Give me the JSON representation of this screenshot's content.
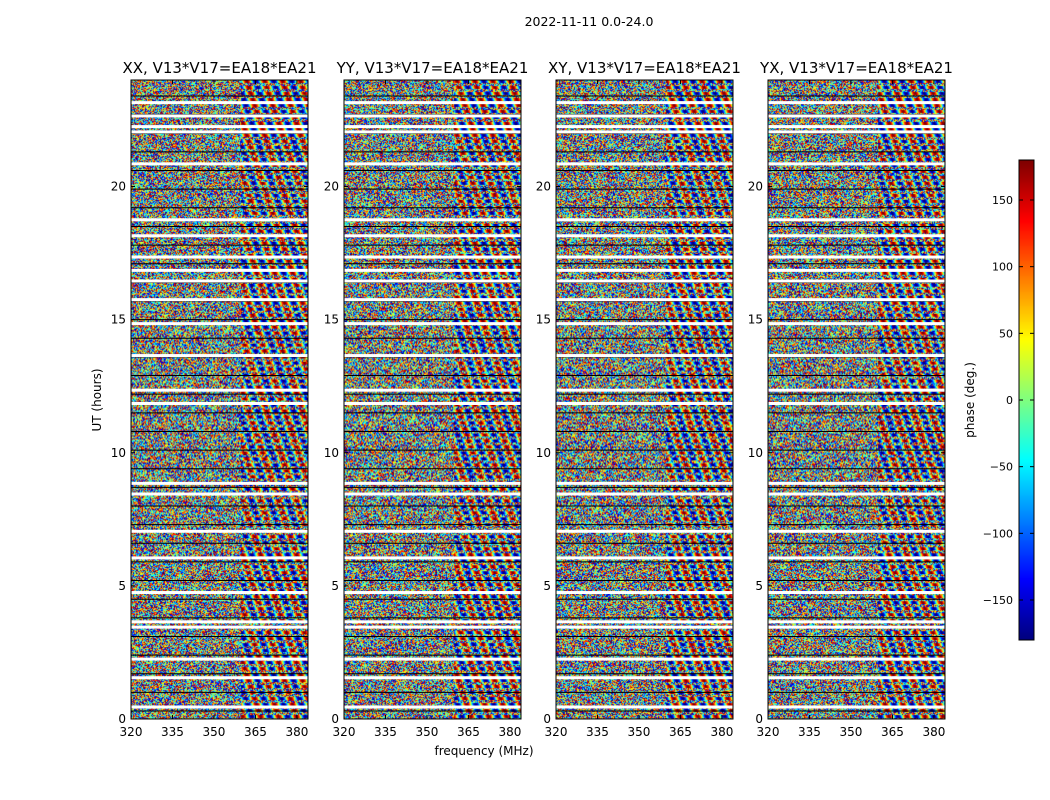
{
  "figure_title": "2022-11-11 0.0-24.0",
  "colors": {
    "background": "#ffffff",
    "axis": "#000000",
    "flagged_gap": "#ffffff",
    "integration_boundary": "#000000"
  },
  "chart_data": [
    {
      "type": "heatmap",
      "title": "XX, V13*V17=EA18*EA21",
      "ylabel": "UT (hours)",
      "xlabel": "",
      "x_ticks": [
        "320",
        "335",
        "350",
        "365",
        "380"
      ],
      "y_ticks": [
        "0",
        "5",
        "10",
        "15",
        "20"
      ],
      "xlim": [
        320,
        384
      ],
      "ylim": [
        0,
        24
      ],
      "colormap": "jet",
      "value": "phase (deg.)"
    },
    {
      "type": "heatmap",
      "title": "YY, V13*V17=EA18*EA21",
      "ylabel": "",
      "xlabel": "frequency (MHz)",
      "x_ticks": [
        "320",
        "335",
        "350",
        "365",
        "380"
      ],
      "y_ticks": [
        "0",
        "5",
        "10",
        "15",
        "20"
      ],
      "xlim": [
        320,
        384
      ],
      "ylim": [
        0,
        24
      ],
      "colormap": "jet",
      "value": "phase (deg.)"
    },
    {
      "type": "heatmap",
      "title": "XY, V13*V17=EA18*EA21",
      "ylabel": "",
      "xlabel": "",
      "x_ticks": [
        "320",
        "335",
        "350",
        "365",
        "380"
      ],
      "y_ticks": [
        "0",
        "5",
        "10",
        "15",
        "20"
      ],
      "xlim": [
        320,
        384
      ],
      "ylim": [
        0,
        24
      ],
      "colormap": "jet",
      "value": "phase (deg.)"
    },
    {
      "type": "heatmap",
      "title": "YX, V13*V17=EA18*EA21",
      "ylabel": "",
      "xlabel": "",
      "x_ticks": [
        "320",
        "335",
        "350",
        "365",
        "380"
      ],
      "y_ticks": [
        "0",
        "5",
        "10",
        "15",
        "20"
      ],
      "xlim": [
        320,
        384
      ],
      "ylim": [
        0,
        24
      ],
      "colormap": "jet",
      "value": "phase (deg.)"
    }
  ],
  "colorbar": {
    "label": "phase (deg.)",
    "ticks": [
      "150",
      "100",
      "50",
      "0",
      "−50",
      "−100",
      "−150"
    ],
    "tick_values": [
      150,
      100,
      50,
      0,
      -50,
      -100,
      -150
    ],
    "range": [
      -180,
      180
    ],
    "colormap": "jet"
  },
  "flagged_rows_hours": [
    0.45,
    1.55,
    2.25,
    3.45,
    3.65,
    4.75,
    6.05,
    7.05,
    8.45,
    8.85,
    11.85,
    12.35,
    13.65,
    14.85,
    15.75,
    16.45,
    16.85,
    17.35,
    18.15,
    18.75,
    20.85,
    22.05,
    22.25,
    22.65,
    23.15
  ]
}
